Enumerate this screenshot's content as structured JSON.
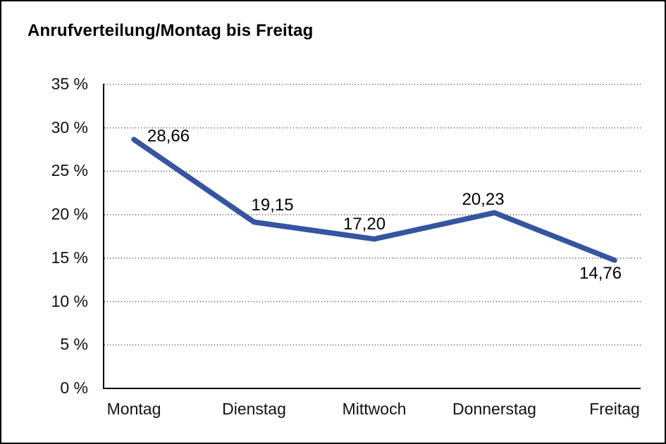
{
  "window": {
    "background_color": "#ffffff",
    "frame_border_color": "#000000"
  },
  "chart_data": {
    "type": "line",
    "title": "Anrufverteilung/Montag bis Freitag",
    "categories": [
      "Montag",
      "Dienstag",
      "Mittwoch",
      "Donnerstag",
      "Freitag"
    ],
    "series": [
      {
        "name": "Anrufverteilung",
        "values": [
          28.66,
          19.15,
          17.2,
          20.23,
          14.76
        ],
        "value_labels": [
          "28,66",
          "19,15",
          "17,20",
          "20,23",
          "14,76"
        ],
        "color": "#3554A1"
      }
    ],
    "xlabel": "",
    "ylabel": "",
    "ylim": [
      0,
      35
    ],
    "y_tick_step": 5,
    "y_ticks": [
      {
        "value": 35,
        "label": "35 %"
      },
      {
        "value": 30,
        "label": "30 %"
      },
      {
        "value": 25,
        "label": "25 %"
      },
      {
        "value": 20,
        "label": "20 %"
      },
      {
        "value": 15,
        "label": "15 %"
      },
      {
        "value": 10,
        "label": "10 %"
      },
      {
        "value": 5,
        "label": "5 %"
      },
      {
        "value": 0,
        "label": "0 %"
      }
    ],
    "grid": "dotted horizontal",
    "legend_position": "none",
    "colors": {
      "line": "#3554A1",
      "axis": "#000000",
      "gridline": "#555555",
      "text": "#111111"
    }
  }
}
